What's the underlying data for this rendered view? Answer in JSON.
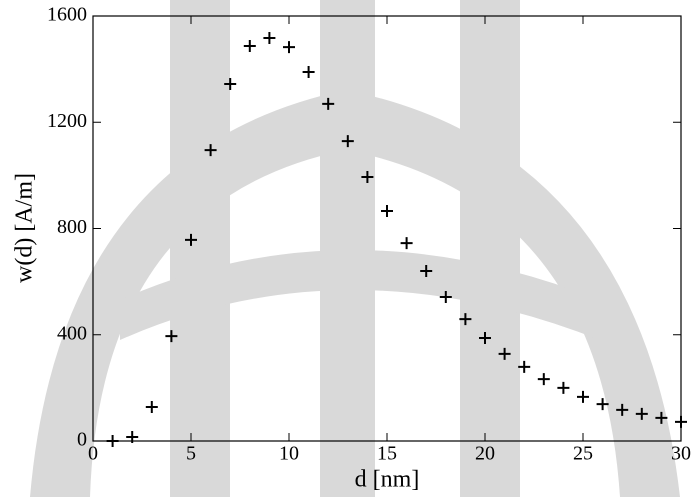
{
  "chart_data": {
    "type": "scatter",
    "x_label": "d [nm]",
    "y_label": "w(d) [A/m]",
    "x": [
      1,
      2,
      3,
      4,
      5,
      6,
      7,
      8,
      9,
      10,
      11,
      12,
      13,
      14,
      15,
      16,
      17,
      18,
      19,
      20,
      21,
      22,
      23,
      24,
      25,
      26,
      27,
      28,
      29,
      30
    ],
    "values": [
      0,
      15,
      128,
      395,
      757,
      1095,
      1344,
      1487,
      1517,
      1483,
      1389,
      1269,
      1129,
      994,
      866,
      745,
      640,
      542,
      459,
      388,
      328,
      279,
      233,
      200,
      166,
      139,
      117,
      102,
      87,
      72
    ],
    "color": "#000000",
    "marker": "plus",
    "xlim": [
      0,
      30
    ],
    "xticks": [
      0,
      5,
      10,
      15,
      20,
      25,
      30
    ],
    "ylim": [
      0,
      1600
    ],
    "yticks": [
      0,
      400,
      800,
      1200,
      1600
    ]
  }
}
